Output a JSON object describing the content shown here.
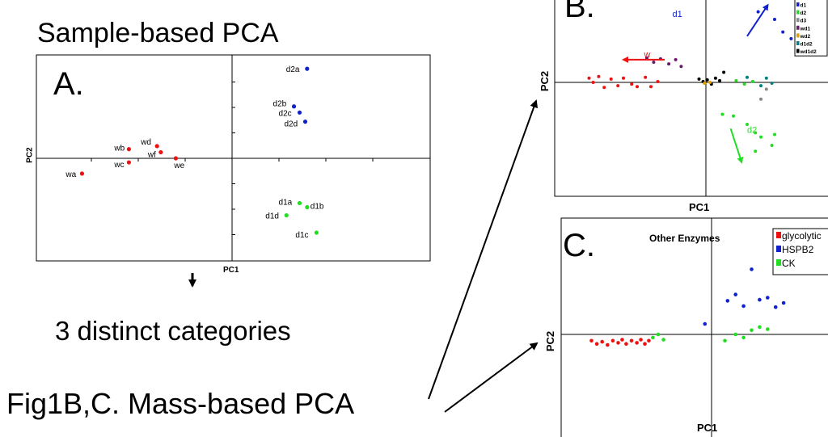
{
  "titles": {
    "sample_based": "Sample-based PCA",
    "categories": "3 distinct categories",
    "mass_based": "Fig1B,C. Mass-based PCA"
  },
  "colors": {
    "red": "#ee1111",
    "blue": "#1122cc",
    "green": "#22dd22",
    "black": "#000000"
  },
  "chart_data": [
    {
      "panel": "A.",
      "type": "scatter",
      "xlabel": "PC1",
      "ylabel": "PC2",
      "xlim": [
        -1,
        1
      ],
      "ylim": [
        -1,
        1
      ],
      "grid": false,
      "points": [
        {
          "label": "wa",
          "x": -0.8,
          "y": -0.15,
          "color": "#ee1111"
        },
        {
          "label": "wb",
          "x": -0.55,
          "y": 0.09,
          "color": "#ee1111"
        },
        {
          "label": "wc",
          "x": -0.55,
          "y": -0.04,
          "color": "#ee1111"
        },
        {
          "label": "wd",
          "x": -0.4,
          "y": 0.12,
          "color": "#ee1111"
        },
        {
          "label": "wf",
          "x": -0.38,
          "y": 0.06,
          "color": "#ee1111"
        },
        {
          "label": "we",
          "x": -0.3,
          "y": 0.0,
          "color": "#ee1111"
        },
        {
          "label": "d2a",
          "x": 0.4,
          "y": 0.88,
          "color": "#1122cc"
        },
        {
          "label": "d2b",
          "x": 0.33,
          "y": 0.51,
          "color": "#1122cc"
        },
        {
          "label": "d2c",
          "x": 0.36,
          "y": 0.45,
          "color": "#1122cc"
        },
        {
          "label": "d2d",
          "x": 0.39,
          "y": 0.36,
          "color": "#1122cc"
        },
        {
          "label": "d1a",
          "x": 0.36,
          "y": -0.44,
          "color": "#22dd22"
        },
        {
          "label": "d1b",
          "x": 0.4,
          "y": -0.48,
          "color": "#22dd22"
        },
        {
          "label": "d1d",
          "x": 0.29,
          "y": -0.56,
          "color": "#22dd22"
        },
        {
          "label": "d1c",
          "x": 0.45,
          "y": -0.73,
          "color": "#22dd22"
        }
      ]
    },
    {
      "panel": "B.",
      "type": "scatter",
      "xlabel": "PC1",
      "ylabel": "PC2",
      "xlim": [
        -1,
        1
      ],
      "ylim": [
        -1,
        1
      ],
      "grid": false,
      "legend": [
        {
          "name": "d1",
          "color": "#1122cc"
        },
        {
          "name": "d2",
          "color": "#22dd22"
        },
        {
          "name": "d3",
          "color": "#888888"
        },
        {
          "name": "wd1",
          "color": "#6a1a6a"
        },
        {
          "name": "wd2",
          "color": "#e0a000"
        },
        {
          "name": "d1d2",
          "color": "#008080"
        },
        {
          "name": "wd1d2",
          "color": "#000000"
        }
      ],
      "legend_position": "top-right",
      "annotations": [
        {
          "text": "d1",
          "color": "#1122cc"
        },
        {
          "text": "w",
          "color": "#ee1111"
        },
        {
          "text": "d2",
          "color": "#22dd22"
        }
      ],
      "arrows": [
        {
          "name": "d1",
          "from": [
            0.3,
            0.55
          ],
          "to": [
            0.45,
            0.92
          ],
          "color": "#1122cc"
        },
        {
          "name": "w",
          "from": [
            -0.3,
            0.27
          ],
          "to": [
            -0.6,
            0.27
          ],
          "color": "#ee1111"
        },
        {
          "name": "d2",
          "from": [
            0.18,
            -0.55
          ],
          "to": [
            0.26,
            -0.95
          ],
          "color": "#22dd22"
        }
      ],
      "series": [
        {
          "name": "w",
          "color": "#ee1111",
          "points": [
            [
              -0.85,
              0.05
            ],
            [
              -0.82,
              0.0
            ],
            [
              -0.78,
              0.07
            ],
            [
              -0.74,
              -0.06
            ],
            [
              -0.69,
              0.04
            ],
            [
              -0.64,
              -0.04
            ],
            [
              -0.6,
              0.05
            ],
            [
              -0.54,
              -0.02
            ],
            [
              -0.5,
              -0.05
            ],
            [
              -0.44,
              0.06
            ],
            [
              -0.4,
              -0.05
            ],
            [
              -0.35,
              0.01
            ]
          ]
        },
        {
          "name": "wd1",
          "color": "#6a1a6a",
          "points": [
            [
              -0.43,
              0.29
            ],
            [
              -0.38,
              0.24
            ],
            [
              -0.33,
              0.28
            ],
            [
              -0.27,
              0.22
            ],
            [
              -0.22,
              0.27
            ],
            [
              -0.18,
              0.19
            ]
          ]
        },
        {
          "name": "wd1d2",
          "color": "#000000",
          "points": [
            [
              -0.05,
              0.04
            ],
            [
              -0.02,
              0.01
            ],
            [
              0.01,
              0.03
            ],
            [
              0.04,
              -0.02
            ],
            [
              0.07,
              0.05
            ],
            [
              0.1,
              0.02
            ],
            [
              0.13,
              0.12
            ]
          ]
        },
        {
          "name": "wd2",
          "color": "#e0a000",
          "points": [
            [
              -0.01,
              -0.01
            ],
            [
              0.03,
              0.0
            ]
          ]
        },
        {
          "name": "d1d2",
          "color": "#008080",
          "points": [
            [
              0.3,
              0.06
            ],
            [
              0.34,
              0.01
            ],
            [
              0.4,
              -0.04
            ],
            [
              0.44,
              0.05
            ],
            [
              0.48,
              -0.01
            ]
          ]
        },
        {
          "name": "d1",
          "color": "#1122cc",
          "points": [
            [
              0.38,
              0.84
            ],
            [
              0.44,
              1.0
            ],
            [
              0.5,
              0.75
            ],
            [
              0.56,
              0.6
            ],
            [
              0.62,
              0.52
            ]
          ]
        },
        {
          "name": "d2",
          "color": "#22dd22",
          "points": [
            [
              0.12,
              -0.38
            ],
            [
              0.2,
              -0.4
            ],
            [
              0.3,
              -0.5
            ],
            [
              0.36,
              -0.6
            ],
            [
              0.4,
              -0.65
            ],
            [
              0.5,
              -0.62
            ],
            [
              0.48,
              -0.75
            ],
            [
              0.36,
              -0.82
            ],
            [
              0.22,
              0.02
            ],
            [
              0.28,
              -0.02
            ],
            [
              0.34,
              0.01
            ]
          ]
        },
        {
          "name": "d3",
          "color": "#888888",
          "points": [
            [
              0.4,
              -0.2
            ],
            [
              0.44,
              -0.08
            ]
          ]
        }
      ]
    },
    {
      "panel": "C.",
      "type": "scatter",
      "title": "Other Enzymes",
      "xlabel": "PC1",
      "ylabel": "PC2",
      "xlim": [
        -1,
        1
      ],
      "ylim": [
        -1,
        1
      ],
      "grid": false,
      "legend": [
        {
          "name": "glycolytic",
          "color": "#ee1111"
        },
        {
          "name": "HSPB2",
          "color": "#1122cc"
        },
        {
          "name": "CK",
          "color": "#22dd22"
        }
      ],
      "legend_position": "top-right",
      "series": [
        {
          "name": "glycolytic",
          "color": "#ee1111",
          "points": [
            [
              -0.9,
              -0.06
            ],
            [
              -0.86,
              -0.09
            ],
            [
              -0.82,
              -0.07
            ],
            [
              -0.78,
              -0.1
            ],
            [
              -0.74,
              -0.06
            ],
            [
              -0.7,
              -0.08
            ],
            [
              -0.67,
              -0.05
            ],
            [
              -0.64,
              -0.09
            ],
            [
              -0.6,
              -0.06
            ],
            [
              -0.56,
              -0.08
            ],
            [
              -0.53,
              -0.05
            ],
            [
              -0.5,
              -0.09
            ],
            [
              -0.47,
              -0.06
            ]
          ]
        },
        {
          "name": "HSPB2",
          "color": "#1122cc",
          "points": [
            [
              -0.05,
              0.1
            ],
            [
              0.12,
              0.32
            ],
            [
              0.18,
              0.38
            ],
            [
              0.24,
              0.27
            ],
            [
              0.3,
              0.62
            ],
            [
              0.36,
              0.33
            ],
            [
              0.42,
              0.35
            ],
            [
              0.48,
              0.26
            ],
            [
              0.54,
              0.3
            ]
          ]
        },
        {
          "name": "CK",
          "color": "#22dd22",
          "points": [
            [
              -0.44,
              -0.03
            ],
            [
              -0.4,
              0.0
            ],
            [
              -0.36,
              -0.05
            ],
            [
              0.1,
              -0.06
            ],
            [
              0.18,
              0.0
            ],
            [
              0.24,
              -0.03
            ],
            [
              0.3,
              0.04
            ],
            [
              0.36,
              0.07
            ],
            [
              0.42,
              0.05
            ]
          ]
        }
      ]
    }
  ]
}
